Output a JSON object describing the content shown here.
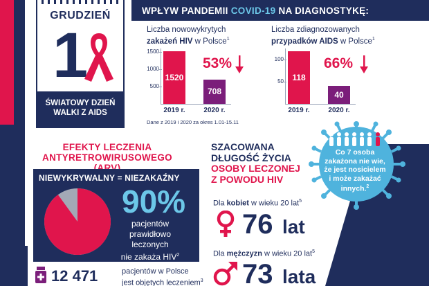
{
  "calendar": {
    "month": "GRUDZIEŃ",
    "day": "1",
    "caption_line1": "ŚWIATOWY DZIEŃ",
    "caption_line2": "WALKI Z AIDS",
    "ribbon_icon": "aids-ribbon-icon"
  },
  "header": {
    "title_before": "WPŁYW PANDEMII ",
    "title_highlight": "COVID-19",
    "title_after": " NA DIAGNOSTYKĘ:"
  },
  "hiv_panel": {
    "label_line1": "Liczba nowowykrytych",
    "label_bold": "zakażeń HIV",
    "label_rest": " w Polsce",
    "label_sup": "1",
    "percent": "53%",
    "ticks": [
      "1500",
      "1000",
      "500"
    ]
  },
  "aids_panel": {
    "label_line1": "Liczba zdiagnozowanych",
    "label_bold": "przypadków AIDS",
    "label_rest": " w Polsce",
    "label_sup": "1",
    "percent": "66%",
    "ticks": [
      "100",
      "50"
    ]
  },
  "chart_data": [
    {
      "type": "bar",
      "categories": [
        "2019 r.",
        "2020 r."
      ],
      "values": [
        1520,
        708
      ],
      "ylim": [
        0,
        1600
      ]
    },
    {
      "type": "bar",
      "categories": [
        "2019 r.",
        "2020 r."
      ],
      "values": [
        118,
        40
      ],
      "ylim": [
        0,
        125
      ]
    }
  ],
  "footnote": "Dane z 2019 i 2020 za okres 1.01-15.11",
  "arv": {
    "title_line1": "EFEKTY LECZENIA",
    "title_line2": "ANTYRETROWIRUSOWEGO (ARV)",
    "heading": "NIEWYKRYWALNY = NIEZAKAŹNY",
    "big_value": "90%",
    "pie_fraction": 0.9,
    "desc_line1": "pacjentów",
    "desc_line2": "prawidłowo",
    "desc_line3": "leczonych",
    "desc_line4": "nie zakaża HIV",
    "desc_sup": "2"
  },
  "treated": {
    "count": "12 471",
    "desc_line1": "pacjentów w Polsce",
    "desc_line2": "jest objętych leczeniem",
    "desc_sup": "3"
  },
  "life": {
    "title_line1": "SZACOWANA",
    "title_line2": "DŁUGOŚĆ ŻYCIA",
    "title_line3": "OSOBY LECZONEJ",
    "title_line4": "Z POWODU HIV",
    "women_label_pre": "Dla ",
    "women_label_bold": "kobiet",
    "women_label_post": " w wieku 20 lat",
    "women_sup": "5",
    "women_value": "76",
    "women_unit": "lat",
    "men_label_pre": "Dla ",
    "men_label_bold": "mężczyzn",
    "men_label_post": " w wieku 20 lat",
    "men_sup": "5",
    "men_value": "73",
    "men_unit": "lata"
  },
  "virus": {
    "line1": "Co 7 osoba",
    "line2": "zakażona nie wie,",
    "line3": "że jest nosicielem",
    "line4": "i może zakażać",
    "line5": "innych.",
    "sup": "2"
  },
  "colors": {
    "navy": "#1f2d5c",
    "red": "#e0154c",
    "purple": "#7b1e7a",
    "cyan": "#6cc7e8",
    "virus_blue": "#4fb3dd",
    "pie_grey": "#a3a9b6"
  }
}
